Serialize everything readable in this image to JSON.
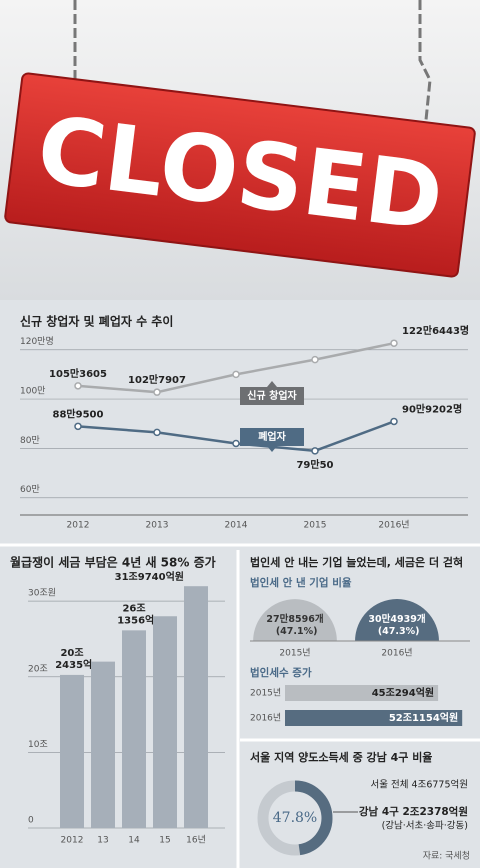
{
  "sign": {
    "text": "CLOSED"
  },
  "source": "자료: 국세청",
  "chart_data": [
    {
      "type": "line",
      "title": "신규 창업자 및 폐업자 수 추이",
      "categories": [
        "2012",
        "2013",
        "2014",
        "2015",
        "2016년"
      ],
      "ylim": [
        53,
        128
      ],
      "yticks": [
        {
          "value": 120,
          "label": "120만명"
        },
        {
          "value": 100,
          "label": "100만"
        },
        {
          "value": 80,
          "label": "80만"
        },
        {
          "value": 60,
          "label": "60만"
        }
      ],
      "grid": true,
      "series": [
        {
          "name": "신규 창업자",
          "color": "#a9abad",
          "values": [
            105.3605,
            102.7907,
            110,
            116,
            122.6443
          ],
          "value_labels": [
            "105만3605",
            "102만7907",
            null,
            null,
            "122만6443명"
          ]
        },
        {
          "name": "폐업자",
          "color": "#4f6b84",
          "values": [
            88.95,
            86.5,
            82,
            79.005,
            90.9202
          ],
          "value_labels": [
            "88만9500",
            null,
            null,
            "79만50",
            "90만9202명"
          ]
        }
      ]
    },
    {
      "type": "bar",
      "title": "월급쟁이 세금 부담은 4년 새 58% 증가",
      "categories": [
        "2012",
        "13",
        "14",
        "15",
        "16년"
      ],
      "values": [
        20.2435,
        22,
        26.1356,
        28,
        31.974
      ],
      "value_labels": [
        "20조 2435억",
        null,
        "26조 1356억",
        null,
        "31조9740억원"
      ],
      "color": "#a6afb9",
      "ylim": [
        0,
        32
      ],
      "yticks": [
        0,
        {
          "value": 10,
          "label": "10조"
        },
        {
          "value": 20,
          "label": "20조"
        },
        {
          "value": 30,
          "label": "30조원"
        }
      ],
      "grid": true
    },
    {
      "type": "half-pie",
      "title": "법인세 안 내는 기업 늘었는데, 세금은 더 걷혀",
      "subtitle": "법인세 안 낸 기업 비율",
      "categories": [
        "2015년",
        "2016년"
      ],
      "values": [
        47.1,
        47.3
      ],
      "value_labels": [
        "27만8596개 (47.1%)",
        "30만4939개 (47.3%)"
      ],
      "colors": [
        "#b9bdc1",
        "#566c80"
      ]
    },
    {
      "type": "hbar",
      "title": "법인세수 증가",
      "categories": [
        "2015년",
        "2016년"
      ],
      "values": [
        45.0294,
        52.1154
      ],
      "value_labels": [
        "45조294억원",
        "52조1154억원"
      ],
      "colors": [
        "#b9bdc1",
        "#566c80"
      ],
      "xlim": [
        0,
        55
      ]
    },
    {
      "type": "donut",
      "title": "서울 지역 양도소득세 중 강남 4구 비율",
      "values": [
        47.8
      ],
      "value_labels": [
        "47.8%"
      ],
      "colors": [
        "#566c80",
        "#c5cacf"
      ],
      "annotations": [
        "서울 전체 4조6775억원",
        "강남 4구 2조2378억원",
        "(강남·서초·송파·강동)"
      ]
    }
  ]
}
